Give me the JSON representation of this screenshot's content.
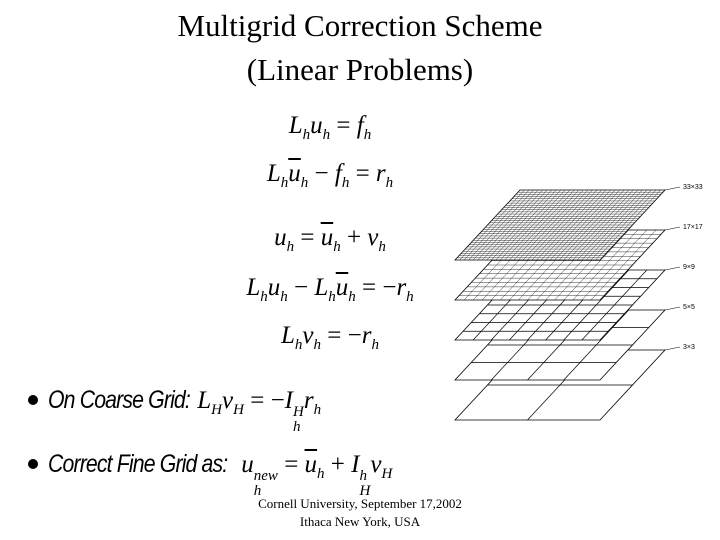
{
  "title": [
    "Multigrid Correction Scheme",
    "(Linear Problems)"
  ],
  "equations": [
    [
      {
        "base": "L",
        "sub": "h"
      },
      {
        "base": "u",
        "sub": "h"
      },
      " = ",
      {
        "base": "f",
        "sub": "h"
      }
    ],
    [
      {
        "base": "L",
        "sub": "h"
      },
      {
        "base": "u",
        "sub": "h",
        "bar": true
      },
      " − ",
      {
        "base": "f",
        "sub": "h"
      },
      " = ",
      {
        "base": "r",
        "sub": "h"
      }
    ],
    [
      {
        "base": "u",
        "sub": "h"
      },
      " = ",
      {
        "base": "u",
        "sub": "h",
        "bar": true
      },
      " + ",
      {
        "base": "v",
        "sub": "h"
      }
    ],
    [
      {
        "base": "L",
        "sub": "h"
      },
      {
        "base": "u",
        "sub": "h"
      },
      " − ",
      {
        "base": "L",
        "sub": "h"
      },
      {
        "base": "u",
        "sub": "h",
        "bar": true
      },
      " = −",
      {
        "base": "r",
        "sub": "h"
      }
    ],
    [
      {
        "base": "L",
        "sub": "h"
      },
      {
        "base": "v",
        "sub": "h"
      },
      " = −",
      {
        "base": "r",
        "sub": "h"
      }
    ]
  ],
  "bullets": [
    {
      "label": "On Coarse Grid:",
      "equation": [
        {
          "base": "L",
          "sub": "H"
        },
        {
          "base": "v",
          "sub": "H"
        },
        " = −",
        {
          "base": "I",
          "sub": "h",
          "sup": "H"
        },
        {
          "base": "r",
          "sub": "h"
        }
      ]
    },
    {
      "label": "Correct Fine Grid as:",
      "equation": [
        {
          "base": "u",
          "sub": "h",
          "sup": "new"
        },
        " = ",
        {
          "base": "u",
          "sub": "h",
          "bar": true
        },
        " + ",
        {
          "base": "I",
          "sub": "H",
          "sup": "h"
        },
        {
          "base": "v",
          "sub": "H"
        }
      ]
    }
  ],
  "grid_labels": [
    "33×33",
    "17×17",
    "9×9",
    "5×5",
    "3×3"
  ],
  "footer": [
    "Cornell University, September 17,2002",
    "Ithaca New York, USA"
  ]
}
